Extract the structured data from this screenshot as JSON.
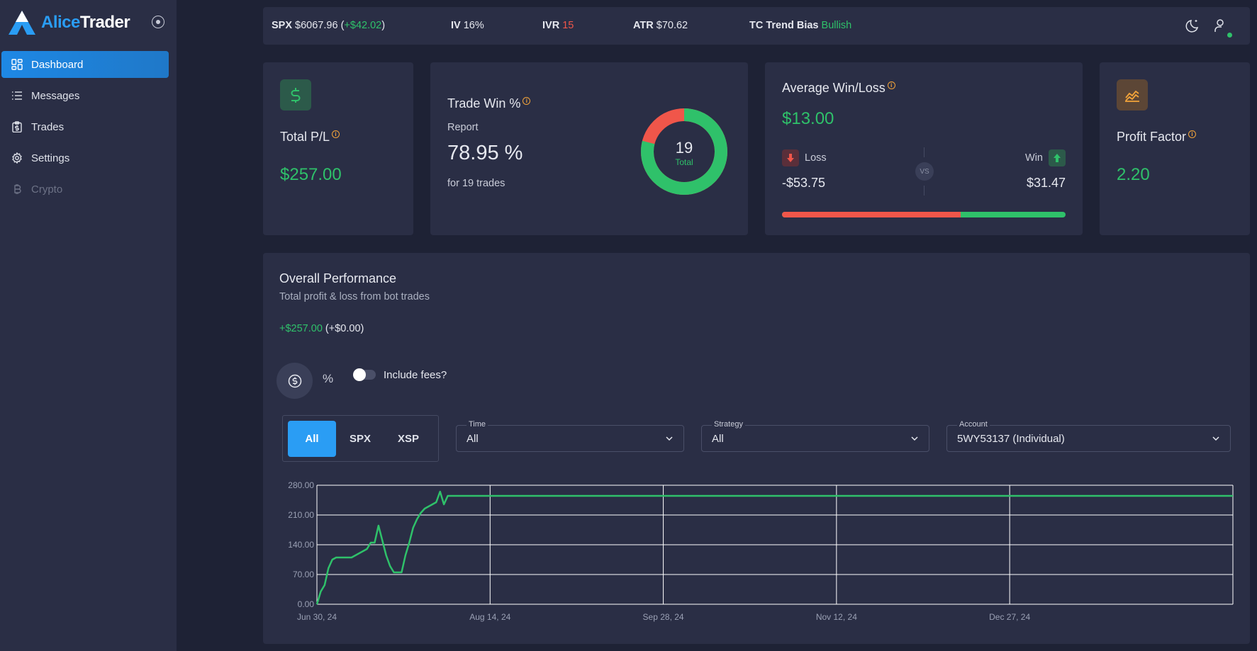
{
  "app": {
    "logo_part1": "Alice",
    "logo_part2": "Trader"
  },
  "sidebar": {
    "items": [
      {
        "label": "Dashboard",
        "icon": "dashboard-icon",
        "active": true
      },
      {
        "label": "Messages",
        "icon": "list-icon"
      },
      {
        "label": "Trades",
        "icon": "clipboard-dollar-icon"
      },
      {
        "label": "Settings",
        "icon": "gear-icon"
      },
      {
        "label": "Crypto",
        "icon": "bitcoin-icon",
        "disabled": true
      }
    ]
  },
  "topbar": {
    "spx_label": "SPX",
    "spx_value": "$6067.96",
    "spx_change_open": "(",
    "spx_change": "+$42.02",
    "spx_change_close": ")",
    "iv_label": "IV",
    "iv_value": "16%",
    "ivr_label": "IVR",
    "ivr_value": "15",
    "atr_label": "ATR",
    "atr_value": "$70.62",
    "trend_label": "TC Trend Bias",
    "trend_value": "Bullish"
  },
  "cards": {
    "total_pl": {
      "title": "Total P/L",
      "value": "$257.00",
      "icon": "dollar-icon"
    },
    "trade_win": {
      "title": "Trade Win %",
      "subtitle": "Report",
      "value": "78.95 %",
      "note": "for 19 trades",
      "donut_total": "19",
      "donut_label": "Total",
      "win_fraction": 0.7895
    },
    "avg_winloss": {
      "title": "Average Win/Loss",
      "value": "$13.00",
      "loss_label": "Loss",
      "loss_value": "-$53.75",
      "vs": "VS",
      "win_label": "Win",
      "win_value": "$31.47",
      "loss_fraction": 0.63
    },
    "profit_factor": {
      "title": "Profit Factor",
      "value": "2.20",
      "icon": "trend-chart-icon"
    }
  },
  "performance": {
    "title": "Overall Performance",
    "subtitle": "Total profit & loss from bot trades",
    "total": "+$257.00",
    "total_fees": "(+$0.00)",
    "include_fees_label": "Include fees?",
    "include_fees": false,
    "percent_symbol": "%",
    "segments": [
      "All",
      "SPX",
      "XSP"
    ],
    "active_segment": "All",
    "filters": [
      {
        "label": "Time",
        "value": "All"
      },
      {
        "label": "Strategy",
        "value": "All"
      },
      {
        "label": "Account",
        "value": "5WY53137 (Individual)"
      }
    ]
  },
  "chart_data": {
    "type": "line",
    "line_color": "#2fc16a",
    "ylim": [
      0,
      280
    ],
    "yticks": [
      "0.00",
      "70.00",
      "140.00",
      "210.00",
      "280.00"
    ],
    "xticks": [
      "Jun 30, 24",
      "Aug 14, 24",
      "Sep 28, 24",
      "Nov 12, 24",
      "Dec 27, 24"
    ],
    "xtick_days": [
      0,
      45,
      90,
      135,
      180
    ],
    "x_days_max": 238,
    "grid": true,
    "series": [
      {
        "x": [
          0,
          1,
          2,
          3,
          4,
          5,
          7,
          9,
          11,
          13,
          14,
          15,
          16,
          17,
          18,
          19,
          20,
          21,
          22,
          23,
          24,
          25,
          26,
          27,
          28,
          29,
          30,
          31,
          32,
          33,
          34,
          35,
          36,
          37,
          38,
          39,
          40,
          41,
          42,
          43,
          44,
          45,
          238
        ],
        "y": [
          0,
          30,
          45,
          85,
          105,
          110,
          110,
          110,
          120,
          130,
          145,
          145,
          185,
          150,
          115,
          90,
          75,
          75,
          75,
          115,
          145,
          180,
          200,
          215,
          225,
          230,
          235,
          240,
          265,
          235,
          255,
          255,
          255,
          255,
          255,
          255,
          255,
          255,
          255,
          255,
          255,
          255,
          255
        ]
      }
    ]
  }
}
